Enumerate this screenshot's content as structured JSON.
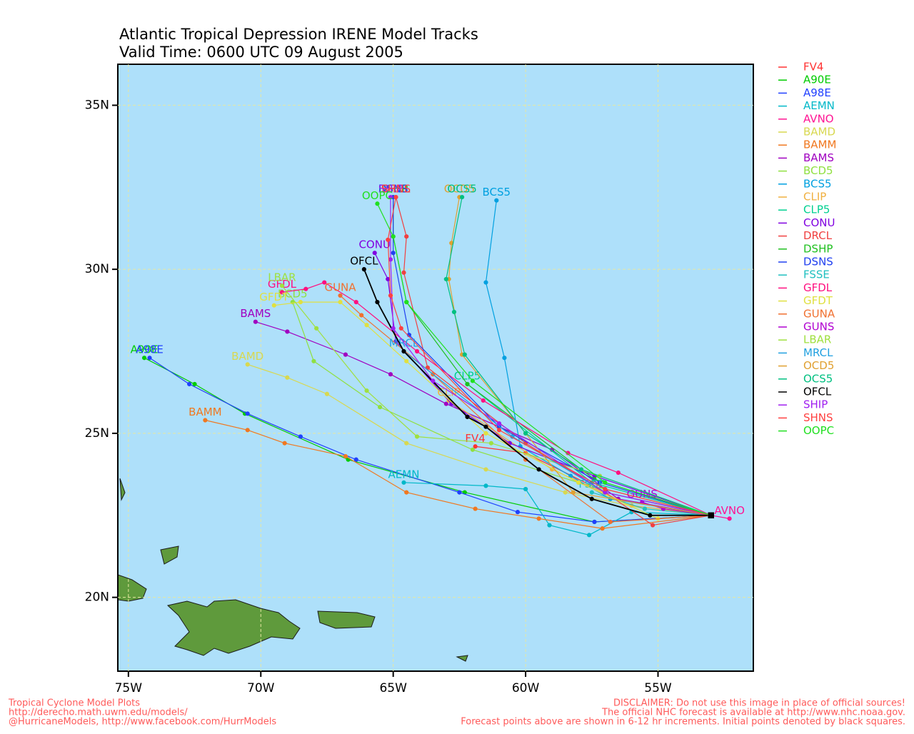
{
  "chart_data": {
    "type": "line",
    "title": "Atlantic Tropical Depression IRENE Model Tracks",
    "subtitle": "Valid Time: 0600 UTC 09 August 2005",
    "footer_left": [
      "Tropical Cyclone Model Plots",
      "http://derecho.math.uwm.edu/models/",
      "@HurricaneModels, http://www.facebook.com/HurrModels"
    ],
    "footer_right": [
      "DISCLAIMER: Do not use this image in place of official sources!",
      "The official NHC forecast is available at http://www.nhc.noaa.gov.",
      "Forecast points above are shown in 6-12 hr increments. Initial points denoted by black squares."
    ],
    "xlim": [
      -75.4,
      -51.4
    ],
    "ylim": [
      17.75,
      36.25
    ],
    "xticks": [
      {
        "value": -75,
        "label": "75W"
      },
      {
        "value": -70,
        "label": "70W"
      },
      {
        "value": -65,
        "label": "65W"
      },
      {
        "value": -60,
        "label": "60W"
      },
      {
        "value": -55,
        "label": "55W"
      }
    ],
    "yticks": [
      {
        "value": 20,
        "label": "20N"
      },
      {
        "value": 25,
        "label": "25N"
      },
      {
        "value": 30,
        "label": "30N"
      },
      {
        "value": 35,
        "label": "35N"
      }
    ],
    "grid": true,
    "series": [
      {
        "name": "FV4",
        "color": "#ff3333",
        "x": [
          -53.0,
          -57.0,
          -60.0,
          -61.9
        ],
        "values": [
          22.5,
          23.2,
          24.4,
          24.6
        ]
      },
      {
        "name": "A90E",
        "color": "#00cc00",
        "x": [
          -53.0,
          -57.4,
          -62.3,
          -66.7,
          -70.6,
          -72.5,
          -74.4
        ],
        "values": [
          22.5,
          22.3,
          23.2,
          24.2,
          25.6,
          26.5,
          27.3
        ]
      },
      {
        "name": "A98E",
        "color": "#2040ff",
        "x": [
          -53.0,
          -57.4,
          -60.3,
          -62.5,
          -66.4,
          -68.5,
          -70.5,
          -72.7,
          -74.2
        ],
        "values": [
          22.5,
          22.3,
          22.6,
          23.2,
          24.2,
          24.9,
          25.6,
          26.5,
          27.3
        ]
      },
      {
        "name": "AEMN",
        "color": "#00b8c8",
        "x": [
          -53.0,
          -56.0,
          -57.6,
          -59.1,
          -60.0,
          -61.5,
          -64.6
        ],
        "values": [
          22.5,
          22.6,
          21.9,
          22.2,
          23.3,
          23.4,
          23.5
        ]
      },
      {
        "name": "AVNO",
        "color": "#ff1493",
        "x": [
          -53.0,
          -52.3
        ],
        "values": [
          22.5,
          22.4
        ]
      },
      {
        "name": "BAMD",
        "color": "#d8d850",
        "x": [
          -53.0,
          -55.5,
          -58.5,
          -61.5,
          -64.5,
          -67.5,
          -69.0,
          -70.5
        ],
        "values": [
          22.5,
          22.7,
          23.2,
          23.9,
          24.7,
          26.2,
          26.7,
          27.1
        ]
      },
      {
        "name": "BAMM",
        "color": "#f07820",
        "x": [
          -53.0,
          -57.1,
          -59.5,
          -61.9,
          -64.5,
          -66.8,
          -69.1,
          -70.5,
          -72.1
        ],
        "values": [
          22.5,
          22.1,
          22.4,
          22.7,
          23.2,
          24.3,
          24.7,
          25.1,
          25.4
        ]
      },
      {
        "name": "BAMS",
        "color": "#a000c0",
        "x": [
          -53.0,
          -56.5,
          -59.0,
          -63.0,
          -65.1,
          -66.8,
          -69.0,
          -70.2
        ],
        "values": [
          22.5,
          23.0,
          24.5,
          25.9,
          26.8,
          27.4,
          28.1,
          28.4
        ]
      },
      {
        "name": "BCD5",
        "color": "#90e040",
        "x": [
          -53.0,
          -58.0,
          -62.0,
          -65.5,
          -68.0,
          -68.8
        ],
        "values": [
          22.5,
          23.5,
          24.5,
          25.8,
          27.2,
          29.0
        ]
      },
      {
        "name": "BCS5",
        "color": "#00a0e0",
        "x": [
          -53.0,
          -56.8,
          -58.3,
          -60.2,
          -60.8,
          -61.5,
          -61.1
        ],
        "values": [
          22.5,
          23.0,
          23.7,
          24.6,
          27.3,
          29.6,
          32.1
        ]
      },
      {
        "name": "CLIP",
        "color": "#f0b040",
        "x": [
          -53.0,
          -56.0,
          -59.0,
          -62.9
        ],
        "values": [
          22.5,
          22.8,
          23.9,
          26.0
        ]
      },
      {
        "name": "CLP5",
        "color": "#00d090",
        "x": [
          -53.0,
          -57.5,
          -62.2
        ],
        "values": [
          22.5,
          23.5,
          26.5
        ]
      },
      {
        "name": "CONU",
        "color": "#8000e0",
        "x": [
          -53.0,
          -57.4,
          -60.6,
          -62.8,
          -64.9,
          -65.2,
          -65.7
        ],
        "values": [
          22.5,
          23.7,
          24.7,
          25.9,
          27.8,
          29.7,
          30.5
        ]
      },
      {
        "name": "DRCL",
        "color": "#f04040",
        "x": [
          -53.0,
          -55.2,
          -57.0,
          -60.0,
          -63.7,
          -64.6,
          -64.5,
          -64.9
        ],
        "values": [
          22.5,
          22.2,
          23.2,
          24.7,
          27.0,
          29.9,
          31.0,
          32.2
        ]
      },
      {
        "name": "DSHP",
        "color": "#20c020",
        "x": [
          -53.0,
          -57.4,
          -62.2,
          -64.5,
          -65.0,
          -65.0
        ],
        "values": [
          22.5,
          23.6,
          26.5,
          29.0,
          31.0,
          32.2
        ]
      },
      {
        "name": "DSNS",
        "color": "#2040f0",
        "x": [
          -53.0,
          -57.2,
          -61.0,
          -64.4,
          -65.0,
          -65.0
        ],
        "values": [
          22.5,
          23.5,
          25.2,
          28.0,
          30.5,
          32.2
        ]
      },
      {
        "name": "FSSE",
        "color": "#20c0c0",
        "x": [
          -53.0,
          -55.5,
          -57.5
        ],
        "values": [
          22.5,
          22.7,
          23.2
        ]
      },
      {
        "name": "GFDL",
        "color": "#ff1080",
        "x": [
          -53.0,
          -56.5,
          -58.4,
          -61.6,
          -64.1,
          -66.4,
          -67.6,
          -68.3,
          -69.2
        ],
        "values": [
          22.5,
          23.8,
          24.4,
          26.0,
          27.5,
          29.0,
          29.6,
          29.4,
          29.3
        ]
      },
      {
        "name": "GFDT",
        "color": "#e0e040",
        "x": [
          -53.0,
          -55.0,
          -58.0,
          -61.5,
          -64.5,
          -66.0,
          -67.0,
          -68.5,
          -69.5
        ],
        "values": [
          22.5,
          22.4,
          23.5,
          25.0,
          27.2,
          28.3,
          29.0,
          29.0,
          28.9
        ]
      },
      {
        "name": "GUNA",
        "color": "#f07030",
        "x": [
          -53.0,
          -56.8,
          -60.0,
          -63.5,
          -66.2,
          -67.0
        ],
        "values": [
          22.5,
          22.3,
          24.2,
          26.8,
          28.6,
          29.2
        ]
      },
      {
        "name": "GUNS",
        "color": "#b000d0",
        "x": [
          -53.0,
          -54.8,
          -55.6
        ],
        "values": [
          22.5,
          22.7,
          22.9
        ]
      },
      {
        "name": "LBAR",
        "color": "#a0e040",
        "x": [
          -53.0,
          -57.2,
          -61.3,
          -64.1,
          -66.0,
          -67.9,
          -69.2
        ],
        "values": [
          22.5,
          23.7,
          24.7,
          24.9,
          26.3,
          28.2,
          29.5
        ]
      },
      {
        "name": "MRCL",
        "color": "#20a0e0",
        "x": [
          -53.0,
          -57.0,
          -60.5,
          -64.6
        ],
        "values": [
          22.5,
          23.2,
          24.9,
          27.5
        ]
      },
      {
        "name": "OCD5",
        "color": "#e0a030",
        "x": [
          -53.0,
          -58.2,
          -62.4,
          -62.9,
          -62.8,
          -62.5
        ],
        "values": [
          22.5,
          23.2,
          27.4,
          29.7,
          30.8,
          32.2
        ]
      },
      {
        "name": "OCS5",
        "color": "#00c080",
        "x": [
          -53.0,
          -57.9,
          -60.0,
          -62.3,
          -62.7,
          -63.0,
          -62.4
        ],
        "values": [
          22.5,
          23.9,
          25.0,
          27.4,
          28.7,
          29.7,
          32.2
        ]
      },
      {
        "name": "OFCL",
        "color": "#000000",
        "x": [
          -53.0,
          -55.3,
          -57.5,
          -59.5,
          -61.5,
          -62.2,
          -64.6,
          -65.6,
          -66.1
        ],
        "values": [
          22.5,
          22.5,
          23.0,
          23.9,
          25.2,
          25.5,
          27.5,
          29.0,
          30.0
        ]
      },
      {
        "name": "SHIP",
        "color": "#a020f0",
        "x": [
          -53.0,
          -57.0,
          -61.0,
          -63.5,
          -65.0,
          -65.1,
          -65.1
        ],
        "values": [
          22.5,
          23.2,
          25.3,
          26.6,
          28.2,
          30.3,
          32.2
        ]
      },
      {
        "name": "SHNS",
        "color": "#ff4040",
        "x": [
          -53.0,
          -57.0,
          -61.0,
          -64.7,
          -65.1,
          -65.2,
          -64.9
        ],
        "values": [
          22.5,
          23.3,
          25.1,
          28.2,
          29.2,
          30.9,
          32.2
        ]
      },
      {
        "name": "OOPC",
        "color": "#20e020",
        "x": [
          -53.0,
          -57.0,
          -62.0,
          -64.5,
          -65.0,
          -65.6
        ],
        "values": [
          22.5,
          23.5,
          26.6,
          29.0,
          31.0,
          32.0
        ]
      }
    ]
  }
}
